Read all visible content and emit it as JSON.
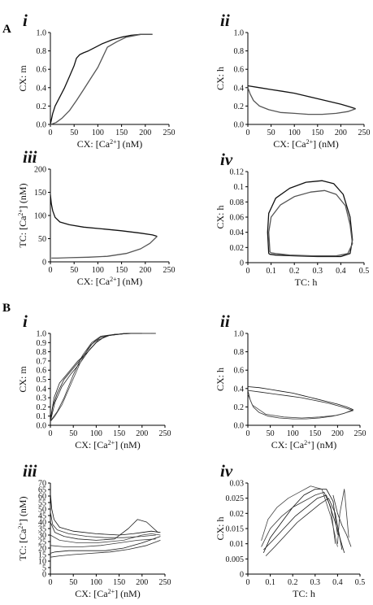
{
  "sections": [
    {
      "label": "A"
    },
    {
      "label": "B"
    }
  ],
  "chart_data": [
    {
      "type": "line",
      "section": "A",
      "panel": "i",
      "xlabel": "CX: [Ca2+] (nM)",
      "ylabel": "CX: m",
      "xlim": [
        0,
        250
      ],
      "ylim": [
        0,
        1.0
      ],
      "xticks": [
        "0",
        "50",
        "100",
        "150",
        "200",
        "250"
      ],
      "yticks": [
        "0.0",
        "0.2",
        "0.4",
        "0.6",
        "0.8",
        "1.0"
      ],
      "series": [
        {
          "x": [
            0,
            5,
            10,
            20,
            30,
            40,
            50,
            55,
            62,
            70,
            80,
            95,
            110,
            130,
            150,
            170,
            190,
            215
          ],
          "y": [
            0.0,
            0.12,
            0.2,
            0.3,
            0.4,
            0.52,
            0.64,
            0.72,
            0.76,
            0.78,
            0.8,
            0.84,
            0.88,
            0.92,
            0.95,
            0.97,
            0.98,
            0.98
          ]
        },
        {
          "x": [
            215,
            190,
            160,
            140,
            120,
            100,
            85,
            70,
            55,
            40,
            25,
            12,
            4,
            0
          ],
          "y": [
            0.98,
            0.98,
            0.95,
            0.9,
            0.84,
            0.62,
            0.5,
            0.38,
            0.26,
            0.15,
            0.07,
            0.02,
            0.005,
            0.0
          ]
        }
      ]
    },
    {
      "type": "line",
      "section": "A",
      "panel": "ii",
      "xlabel": "CX: [Ca2+] (nM)",
      "ylabel": "CX: h",
      "xlim": [
        0,
        250
      ],
      "ylim": [
        0,
        1.0
      ],
      "xticks": [
        "0",
        "50",
        "100",
        "150",
        "200",
        "250"
      ],
      "yticks": [
        "0.0",
        "0.2",
        "0.4",
        "0.6",
        "0.8",
        "1.0"
      ],
      "series": [
        {
          "x": [
            0,
            25,
            50,
            75,
            100,
            125,
            150,
            175,
            200,
            220,
            232
          ],
          "y": [
            0.42,
            0.4,
            0.38,
            0.36,
            0.34,
            0.31,
            0.28,
            0.25,
            0.22,
            0.19,
            0.17
          ]
        },
        {
          "x": [
            232,
            215,
            190,
            160,
            130,
            100,
            70,
            45,
            25,
            12,
            5,
            0
          ],
          "y": [
            0.17,
            0.14,
            0.12,
            0.11,
            0.11,
            0.12,
            0.13,
            0.16,
            0.2,
            0.26,
            0.33,
            0.4
          ]
        }
      ]
    },
    {
      "type": "line",
      "section": "A",
      "panel": "iii",
      "xlabel": "CX: [Ca2+] (nM)",
      "ylabel": "TC: [Ca2+] (nM)",
      "xlim": [
        0,
        250
      ],
      "ylim": [
        0,
        200
      ],
      "xticks": [
        "0",
        "50",
        "100",
        "150",
        "200",
        "250"
      ],
      "yticks": [
        "0",
        "50",
        "100",
        "150",
        "200"
      ],
      "series": [
        {
          "x": [
            0,
            2,
            5,
            10,
            20,
            40,
            70,
            110,
            150,
            190,
            215,
            225
          ],
          "y": [
            145,
            125,
            110,
            96,
            86,
            80,
            75,
            71,
            67,
            62,
            58,
            55
          ]
        },
        {
          "x": [
            225,
            210,
            190,
            160,
            120,
            80,
            40,
            15,
            5,
            2
          ],
          "y": [
            55,
            40,
            28,
            18,
            12,
            10,
            9,
            8,
            8,
            8
          ]
        }
      ]
    },
    {
      "type": "line",
      "section": "A",
      "panel": "iv",
      "xlabel": "TC: h",
      "ylabel": "CX: h",
      "xlim": [
        0,
        0.5
      ],
      "ylim": [
        0,
        0.12
      ],
      "xticks": [
        "0",
        "0.1",
        "0.2",
        "0.3",
        "0.4",
        "0.5"
      ],
      "yticks": [
        "0",
        "0.02",
        "0.04",
        "0.06",
        "0.08",
        "0.1",
        "0.12"
      ],
      "series": [
        {
          "x": [
            0.09,
            0.085,
            0.09,
            0.12,
            0.18,
            0.25,
            0.32,
            0.37,
            0.41,
            0.44,
            0.45,
            0.44,
            0.4,
            0.3,
            0.2,
            0.12,
            0.095,
            0.09
          ],
          "y": [
            0.012,
            0.04,
            0.065,
            0.085,
            0.098,
            0.106,
            0.108,
            0.104,
            0.09,
            0.06,
            0.03,
            0.012,
            0.008,
            0.008,
            0.009,
            0.01,
            0.011,
            0.012
          ]
        },
        {
          "x": [
            0.095,
            0.09,
            0.1,
            0.14,
            0.2,
            0.27,
            0.33,
            0.38,
            0.42,
            0.44,
            0.45,
            0.43,
            0.38,
            0.28,
            0.18,
            0.12,
            0.1,
            0.095
          ],
          "y": [
            0.014,
            0.04,
            0.06,
            0.076,
            0.087,
            0.093,
            0.095,
            0.09,
            0.075,
            0.05,
            0.025,
            0.012,
            0.009,
            0.009,
            0.01,
            0.012,
            0.013,
            0.014
          ]
        }
      ]
    },
    {
      "type": "line",
      "section": "B",
      "panel": "i",
      "xlabel": "CX: [Ca2+] (nM)",
      "ylabel": "CX: m",
      "xlim": [
        0,
        250
      ],
      "ylim": [
        0,
        1.0
      ],
      "xticks": [
        "0",
        "50",
        "100",
        "150",
        "200",
        "250"
      ],
      "yticks": [
        "0.0",
        "0.1",
        "0.2",
        "0.3",
        "0.4",
        "0.5",
        "0.6",
        "0.7",
        "0.8",
        "0.9",
        "1.0"
      ],
      "series": [
        {
          "x": [
            0,
            5,
            15,
            30,
            50,
            70,
            90,
            110,
            140,
            180,
            230
          ],
          "y": [
            0.05,
            0.2,
            0.35,
            0.5,
            0.62,
            0.74,
            0.88,
            0.96,
            0.99,
            1.0,
            1.0
          ]
        },
        {
          "x": [
            230,
            180,
            140,
            110,
            90,
            70,
            50,
            30,
            15,
            5,
            0
          ],
          "y": [
            1.0,
            1.0,
            0.99,
            0.97,
            0.9,
            0.76,
            0.55,
            0.3,
            0.15,
            0.08,
            0.05
          ]
        },
        {
          "x": [
            0,
            10,
            25,
            45,
            65,
            85,
            105,
            130,
            170,
            220
          ],
          "y": [
            0.04,
            0.25,
            0.42,
            0.56,
            0.68,
            0.82,
            0.93,
            0.98,
            1.0,
            1.0
          ]
        },
        {
          "x": [
            220,
            170,
            130,
            105,
            85,
            65,
            45,
            25,
            10,
            0
          ],
          "y": [
            1.0,
            1.0,
            0.98,
            0.95,
            0.86,
            0.68,
            0.45,
            0.22,
            0.1,
            0.04
          ]
        },
        {
          "x": [
            0,
            8,
            20,
            40,
            60,
            80,
            100,
            120,
            160,
            200
          ],
          "y": [
            0.06,
            0.3,
            0.46,
            0.58,
            0.7,
            0.79,
            0.9,
            0.97,
            1.0,
            1.0
          ]
        }
      ]
    },
    {
      "type": "line",
      "section": "B",
      "panel": "ii",
      "xlabel": "CX: [Ca2+] (nM)",
      "ylabel": "CX: h",
      "xlim": [
        0,
        250
      ],
      "ylim": [
        0,
        1.0
      ],
      "xticks": [
        "0",
        "50",
        "100",
        "150",
        "200",
        "250"
      ],
      "yticks": [
        "0.0",
        "0.2",
        "0.4",
        "0.6",
        "0.8",
        "1.0"
      ],
      "series": [
        {
          "x": [
            0,
            25,
            50,
            75,
            100,
            125,
            150,
            175,
            200,
            220,
            235
          ],
          "y": [
            0.42,
            0.41,
            0.39,
            0.37,
            0.35,
            0.32,
            0.29,
            0.26,
            0.23,
            0.2,
            0.17
          ]
        },
        {
          "x": [
            235,
            215,
            190,
            160,
            130,
            100,
            70,
            45,
            25,
            12,
            5,
            0
          ],
          "y": [
            0.17,
            0.13,
            0.1,
            0.08,
            0.07,
            0.07,
            0.08,
            0.1,
            0.14,
            0.2,
            0.28,
            0.38
          ]
        },
        {
          "x": [
            0,
            30,
            60,
            90,
            120,
            150,
            180,
            210,
            235
          ],
          "y": [
            0.38,
            0.36,
            0.34,
            0.32,
            0.3,
            0.27,
            0.24,
            0.2,
            0.16
          ]
        },
        {
          "x": [
            235,
            200,
            160,
            120,
            80,
            40,
            10,
            0
          ],
          "y": [
            0.16,
            0.11,
            0.09,
            0.08,
            0.09,
            0.12,
            0.22,
            0.34
          ]
        }
      ]
    },
    {
      "type": "line",
      "section": "B",
      "panel": "iii",
      "xlabel": "CX: [Ca2+] (nM)",
      "ylabel": "TC: [Ca2+] (nM)",
      "xlim": [
        0,
        250
      ],
      "ylim": [
        0,
        70
      ],
      "xticks": [
        "0",
        "50",
        "100",
        "150",
        "200",
        "250"
      ],
      "yticks": [
        "0",
        "5",
        "10",
        "15",
        "20",
        "25",
        "30",
        "35",
        "40",
        "45",
        "50",
        "55",
        "60",
        "65",
        "70"
      ],
      "series": [
        {
          "x": [
            0,
            3,
            8,
            20,
            50,
            100,
            150,
            180,
            200,
            220,
            240
          ],
          "y": [
            62,
            50,
            42,
            36,
            33,
            31,
            30,
            31,
            32,
            33,
            32
          ]
        },
        {
          "x": [
            0,
            5,
            15,
            40,
            80,
            120,
            160,
            200,
            230
          ],
          "y": [
            48,
            38,
            34,
            31,
            29,
            28,
            28,
            29,
            30
          ]
        },
        {
          "x": [
            0,
            10,
            30,
            60,
            100,
            140,
            170,
            190,
            210,
            235
          ],
          "y": [
            40,
            32,
            29,
            27,
            26,
            27,
            35,
            42,
            40,
            32
          ]
        },
        {
          "x": [
            0,
            20,
            60,
            100,
            130,
            160,
            180,
            200,
            220,
            240
          ],
          "y": [
            30,
            26,
            24,
            24,
            25,
            26,
            28,
            30,
            31,
            30
          ]
        },
        {
          "x": [
            240,
            200,
            160,
            120,
            80,
            40,
            10,
            0
          ],
          "y": [
            29,
            24,
            20,
            18,
            18,
            18,
            17,
            16
          ]
        },
        {
          "x": [
            240,
            210,
            170,
            130,
            90,
            50,
            20,
            0
          ],
          "y": [
            26,
            22,
            19,
            17,
            16,
            15,
            14,
            13
          ]
        },
        {
          "x": [
            0,
            30,
            70,
            110,
            150,
            190,
            230
          ],
          "y": [
            22,
            21,
            21,
            22,
            24,
            26,
            27
          ]
        }
      ]
    },
    {
      "type": "line",
      "section": "B",
      "panel": "iv",
      "xlabel": "TC: h",
      "ylabel": "CX: h",
      "xlim": [
        0,
        0.5
      ],
      "ylim": [
        0,
        0.03
      ],
      "xticks": [
        "0",
        "0.1",
        "0.2",
        "0.3",
        "0.4",
        "0.5"
      ],
      "yticks": [
        "0",
        "0.005",
        "0.01",
        "0.015",
        "0.02",
        "0.025",
        "0.03"
      ],
      "series": [
        {
          "x": [
            0.07,
            0.1,
            0.15,
            0.2,
            0.25,
            0.3,
            0.35,
            0.38,
            0.4
          ],
          "y": [
            0.007,
            0.012,
            0.017,
            0.022,
            0.026,
            0.028,
            0.028,
            0.024,
            0.013
          ]
        },
        {
          "x": [
            0.06,
            0.1,
            0.15,
            0.2,
            0.25,
            0.3,
            0.34,
            0.37,
            0.39
          ],
          "y": [
            0.009,
            0.015,
            0.019,
            0.022,
            0.024,
            0.026,
            0.027,
            0.022,
            0.01
          ]
        },
        {
          "x": [
            0.08,
            0.12,
            0.17,
            0.22,
            0.27,
            0.32,
            0.36,
            0.39,
            0.42
          ],
          "y": [
            0.006,
            0.009,
            0.013,
            0.017,
            0.02,
            0.023,
            0.025,
            0.02,
            0.008
          ]
        },
        {
          "x": [
            0.06,
            0.09,
            0.13,
            0.18,
            0.23,
            0.28,
            0.33,
            0.37,
            0.4
          ],
          "y": [
            0.011,
            0.018,
            0.022,
            0.025,
            0.027,
            0.029,
            0.028,
            0.019,
            0.009
          ]
        },
        {
          "x": [
            0.07,
            0.11,
            0.16,
            0.21,
            0.26,
            0.31,
            0.35,
            0.39,
            0.43
          ],
          "y": [
            0.008,
            0.011,
            0.015,
            0.019,
            0.022,
            0.025,
            0.026,
            0.017,
            0.007
          ]
        },
        {
          "x": [
            0.38,
            0.4,
            0.42,
            0.44,
            0.45,
            0.46
          ],
          "y": [
            0.026,
            0.02,
            0.016,
            0.013,
            0.011,
            0.009
          ]
        },
        {
          "x": [
            0.4,
            0.41,
            0.43,
            0.45
          ],
          "y": [
            0.01,
            0.02,
            0.028,
            0.012
          ]
        }
      ]
    }
  ]
}
